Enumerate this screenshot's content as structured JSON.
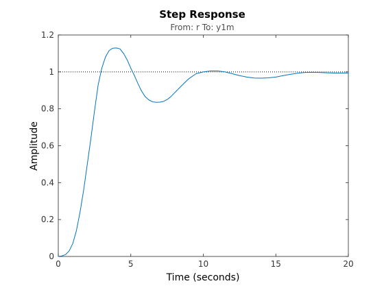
{
  "chart_data": {
    "type": "line",
    "title": "Step Response",
    "subtitle": "From: r  To: y1m",
    "xlabel": "Time (seconds)",
    "ylabel": "Amplitude",
    "xlim": [
      0,
      20
    ],
    "ylim": [
      0,
      1.2
    ],
    "xticks": [
      "0",
      "5",
      "10",
      "15",
      "20"
    ],
    "yticks": [
      "0",
      "0.2",
      "0.4",
      "0.6",
      "0.8",
      "1",
      "1.2"
    ],
    "xtick_values": [
      0,
      5,
      10,
      15,
      20
    ],
    "ytick_values": [
      0,
      0.2,
      0.4,
      0.6,
      0.8,
      1.0,
      1.2
    ],
    "grid": false,
    "reference_line": {
      "y": 1.0,
      "style": "dotted",
      "color": "#000000"
    },
    "series": [
      {
        "color": "#0072bd",
        "x": [
          0,
          0.25,
          0.5,
          0.75,
          1.0,
          1.25,
          1.5,
          1.75,
          2.0,
          2.25,
          2.5,
          2.75,
          3.0,
          3.25,
          3.5,
          3.75,
          4.0,
          4.25,
          4.5,
          4.75,
          5.0,
          5.25,
          5.5,
          5.75,
          6.0,
          6.25,
          6.5,
          6.75,
          7.0,
          7.25,
          7.5,
          7.75,
          8.0,
          8.5,
          9.0,
          9.5,
          10.0,
          10.5,
          11.0,
          11.5,
          12.0,
          12.5,
          13.0,
          13.5,
          14.0,
          14.5,
          15.0,
          15.5,
          16.0,
          16.5,
          17.0,
          17.5,
          18.0,
          18.5,
          19.0,
          19.5,
          20.0
        ],
        "y": [
          0,
          0.003,
          0.01,
          0.03,
          0.07,
          0.14,
          0.24,
          0.36,
          0.5,
          0.64,
          0.79,
          0.93,
          1.02,
          1.08,
          1.115,
          1.128,
          1.13,
          1.125,
          1.1,
          1.065,
          1.02,
          0.98,
          0.935,
          0.895,
          0.865,
          0.848,
          0.838,
          0.835,
          0.836,
          0.84,
          0.85,
          0.865,
          0.885,
          0.925,
          0.963,
          0.99,
          1.0,
          1.005,
          1.005,
          1.0,
          0.99,
          0.98,
          0.972,
          0.967,
          0.966,
          0.968,
          0.972,
          0.98,
          0.987,
          0.993,
          0.997,
          0.998,
          0.997,
          0.995,
          0.994,
          0.994,
          0.994
        ]
      }
    ]
  }
}
